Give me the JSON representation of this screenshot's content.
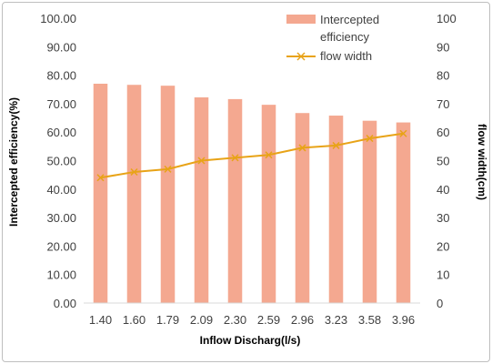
{
  "chart_data": {
    "type": "bar",
    "categories": [
      "1.40",
      "1.60",
      "1.79",
      "2.09",
      "2.30",
      "2.59",
      "2.96",
      "3.23",
      "3.58",
      "3.96"
    ],
    "series": [
      {
        "name": "Intercepted efficiency",
        "type": "bar",
        "axis": "left",
        "color": "#F4A890",
        "values": [
          77.0,
          76.6,
          76.3,
          72.2,
          71.6,
          69.6,
          66.7,
          65.8,
          64.0,
          63.4
        ]
      },
      {
        "name": "flow width",
        "type": "line",
        "axis": "right",
        "color": "#E8A317",
        "marker": "x",
        "values": [
          44.0,
          46.0,
          47.0,
          50.0,
          51.0,
          52.0,
          54.5,
          55.3,
          57.8,
          59.5
        ]
      }
    ],
    "xlabel": "Inflow Discharg(l/s)",
    "ylabel": "Intercepted efficiency(%)",
    "y2label": "flow width(cm)",
    "ylim": [
      0,
      100
    ],
    "y2lim": [
      0,
      100
    ],
    "yticks": [
      "0.00",
      "10.00",
      "20.00",
      "30.00",
      "40.00",
      "50.00",
      "60.00",
      "70.00",
      "80.00",
      "90.00",
      "100.00"
    ],
    "y2ticks": [
      "0",
      "10",
      "20",
      "30",
      "40",
      "50",
      "60",
      "70",
      "80",
      "90",
      "100"
    ],
    "legend": {
      "placement": "top-right",
      "bar_label_line1": "Intercepted",
      "bar_label_line2": "efficiency",
      "line_label": "flow width"
    },
    "grid": false
  }
}
